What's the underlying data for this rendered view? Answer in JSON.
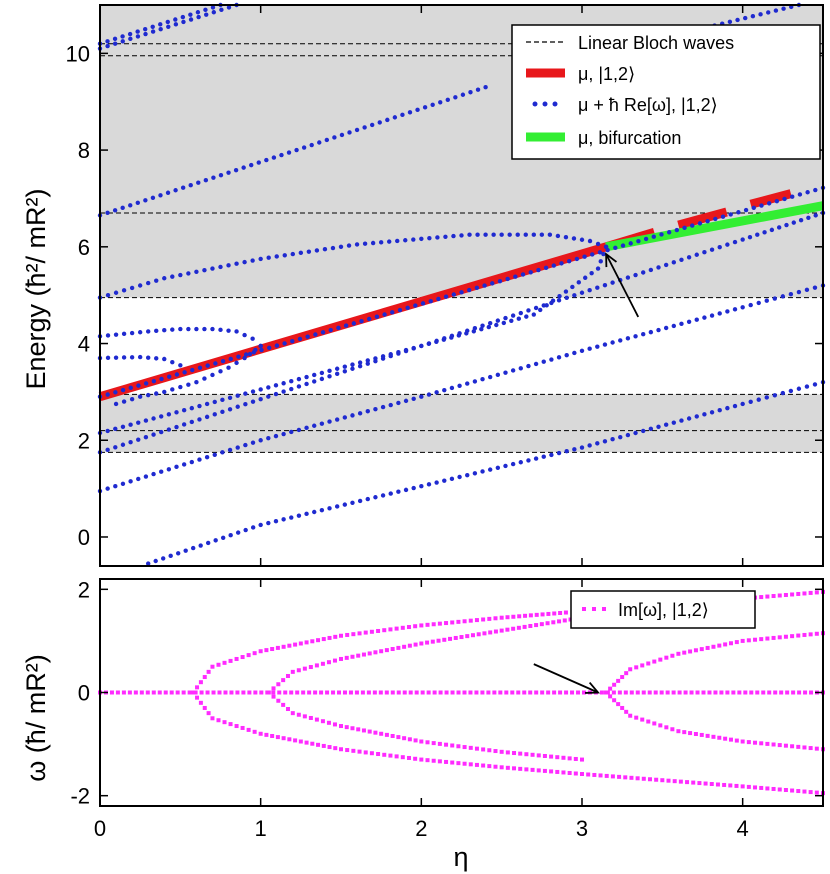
{
  "chart_data": [
    {
      "type": "line",
      "panel": "top",
      "ylabel": "Energy  (ħ²/ mR²)",
      "xlim": [
        0,
        4.5
      ],
      "ylim": [
        -0.6,
        11.0
      ],
      "xticks": [
        0,
        1,
        2,
        3,
        4
      ],
      "yticks": [
        0,
        2,
        4,
        6,
        8,
        10
      ],
      "ytick_labels": [
        "0",
        "2",
        "4",
        "6",
        "8",
        "10"
      ],
      "bands": [
        {
          "from": 1.75,
          "to": 2.95,
          "color": "#d9d9d9"
        },
        {
          "from": 4.95,
          "to": 11.0,
          "color": "#d9d9d9"
        }
      ],
      "linear_bloch_levels": [
        1.75,
        2.2,
        2.95,
        4.95,
        6.7,
        9.95,
        10.2
      ],
      "legend": [
        {
          "label": "Linear Bloch waves",
          "style": "dashed",
          "color": "#000000"
        },
        {
          "label": "μ, |1,2⟩",
          "style": "thick",
          "color": "#e8171b"
        },
        {
          "label": "μ + ħ Re[ω], |1,2⟩",
          "style": "dot",
          "color": "#1f2ad0"
        },
        {
          "label": "μ, bifurcation",
          "style": "thick",
          "color": "#33ee33"
        }
      ],
      "series": [
        {
          "name": "μ, |1,2⟩",
          "color": "#e8171b",
          "kind": "thick",
          "x": [
            0,
            3.15
          ],
          "y": [
            2.9,
            6.0
          ]
        },
        {
          "name": "μ, |1,2⟩ (segment)",
          "color": "#e8171b",
          "kind": "thick",
          "x": [
            3.15,
            3.45
          ],
          "y": [
            6.0,
            6.3
          ]
        },
        {
          "name": "μ, |1,2⟩ (segment)",
          "color": "#e8171b",
          "kind": "thick",
          "x": [
            3.6,
            3.9
          ],
          "y": [
            6.45,
            6.72
          ]
        },
        {
          "name": "μ, |1,2⟩ (segment)",
          "color": "#e8171b",
          "kind": "thick",
          "x": [
            4.05,
            4.3
          ],
          "y": [
            6.88,
            7.1
          ]
        },
        {
          "name": "μ, bifurcation",
          "color": "#33ee33",
          "kind": "thick",
          "x": [
            3.15,
            4.5
          ],
          "y": [
            6.0,
            6.85
          ]
        },
        {
          "name": "μ + ħ Re[ω], |1,2⟩",
          "color": "#1f2ad0",
          "kind": "dots",
          "x": [
            0,
            4.5
          ],
          "y": [
            2.9,
            7.22
          ]
        },
        {
          "name": "μ + ħ Re[ω], |1,2⟩",
          "color": "#1f2ad0",
          "kind": "dots",
          "x": [
            0,
            0.85
          ],
          "y": [
            10.1,
            11.0
          ]
        },
        {
          "name": "μ + ħ Re[ω], |1,2⟩",
          "color": "#1f2ad0",
          "kind": "dots",
          "x": [
            0,
            0.75
          ],
          "y": [
            10.2,
            11.0
          ]
        },
        {
          "name": "μ + ħ Re[ω], |1,2⟩",
          "color": "#1f2ad0",
          "kind": "dots",
          "x": [
            0,
            2.4
          ],
          "y": [
            6.65,
            9.3
          ]
        },
        {
          "name": "μ + ħ Re[ω], |1,2⟩",
          "color": "#1f2ad0",
          "kind": "dots",
          "x": [
            3.3,
            4.35
          ],
          "y": [
            10.15,
            11.0
          ]
        },
        {
          "name": "μ + ħ Re[ω], |1,2⟩",
          "color": "#1f2ad0",
          "kind": "dots",
          "x": [
            0,
            0.4,
            1.0,
            1.6,
            2.3,
            2.8,
            3.05,
            3.15
          ],
          "y": [
            4.95,
            5.35,
            5.75,
            6.05,
            6.25,
            6.25,
            6.12,
            6.0
          ]
        },
        {
          "name": "μ + ħ Re[ω], |1,2⟩",
          "color": "#1f2ad0",
          "kind": "dots",
          "x": [
            0,
            1.0,
            2.0,
            2.7,
            3.1,
            3.15
          ],
          "y": [
            2.15,
            3.05,
            3.95,
            4.6,
            5.55,
            6.0
          ]
        },
        {
          "name": "μ + ħ Re[ω], |1,2⟩",
          "color": "#1f2ad0",
          "kind": "dots",
          "x": [
            0,
            1.0,
            2.0,
            3.0,
            4.0,
            4.5
          ],
          "y": [
            1.75,
            2.85,
            3.95,
            5.05,
            6.15,
            6.7
          ]
        },
        {
          "name": "μ + ħ Re[ω], |1,2⟩",
          "color": "#1f2ad0",
          "kind": "dots",
          "x": [
            0,
            0.3,
            0.5,
            0.7,
            0.85,
            0.95,
            1.0
          ],
          "y": [
            4.15,
            4.25,
            4.3,
            4.3,
            4.25,
            4.1,
            3.95
          ]
        },
        {
          "name": "μ + ħ Re[ω], |1,2⟩",
          "color": "#1f2ad0",
          "kind": "dots",
          "x": [
            0,
            0.25,
            0.4,
            0.5
          ],
          "y": [
            3.7,
            3.72,
            3.68,
            3.55
          ]
        },
        {
          "name": "μ + ħ Re[ω], |1,2⟩",
          "color": "#1f2ad0",
          "kind": "dots",
          "x": [
            1.0,
            0.9,
            0.8,
            0.7,
            0.6,
            0.5,
            0.4,
            0.25,
            0.1
          ],
          "y": [
            3.95,
            3.7,
            3.5,
            3.35,
            3.2,
            3.1,
            3.0,
            2.9,
            2.75
          ]
        },
        {
          "name": "μ + ħ Re[ω], |1,2⟩",
          "color": "#1f2ad0",
          "kind": "dots",
          "x": [
            0,
            1.0,
            2.0,
            3.0,
            4.0,
            4.5
          ],
          "y": [
            0.95,
            2.0,
            2.9,
            3.85,
            4.75,
            5.2
          ]
        },
        {
          "name": "μ + ħ Re[ω], |1,2⟩",
          "color": "#1f2ad0",
          "kind": "dots",
          "x": [
            0.3,
            1.0,
            2.0,
            3.0,
            4.0,
            4.5
          ],
          "y": [
            -0.55,
            0.25,
            1.05,
            1.85,
            2.75,
            3.2
          ]
        }
      ],
      "annotation": {
        "type": "arrow",
        "from": [
          3.35,
          4.55
        ],
        "to": [
          3.15,
          5.85
        ]
      }
    },
    {
      "type": "scatter",
      "panel": "bottom",
      "xlabel": "η",
      "ylabel": "ω (ħ/ mR²)",
      "xlim": [
        0,
        4.5
      ],
      "ylim": [
        -2.2,
        2.2
      ],
      "xticks": [
        0,
        1,
        2,
        3,
        4
      ],
      "xtick_labels": [
        "0",
        "1",
        "2",
        "3",
        "4"
      ],
      "yticks": [
        -2,
        0,
        2
      ],
      "ytick_labels": [
        "-2",
        "0",
        "2"
      ],
      "legend": [
        {
          "label": "Im[ω], |1,2⟩",
          "style": "square",
          "color": "#ff2bff"
        }
      ],
      "series": [
        {
          "name": "Im[ω], |1,2⟩",
          "color": "#ff2bff",
          "kind": "squares",
          "x": [
            0,
            4.5
          ],
          "y": [
            0,
            0
          ]
        },
        {
          "name": "Im[ω], |1,2⟩",
          "color": "#ff2bff",
          "kind": "squares",
          "x": [
            0.58,
            0.7,
            1.0,
            1.5,
            2.0,
            2.5,
            2.9
          ],
          "y": [
            0,
            0.5,
            0.8,
            1.1,
            1.3,
            1.45,
            1.55
          ]
        },
        {
          "name": "Im[ω], |1,2⟩",
          "color": "#ff2bff",
          "kind": "squares",
          "x": [
            0.58,
            0.7,
            1.0,
            1.5,
            2.0,
            2.5,
            3.0,
            3.5,
            4.0,
            4.5
          ],
          "y": [
            0,
            -0.5,
            -0.8,
            -1.1,
            -1.3,
            -1.45,
            -1.58,
            -1.7,
            -1.82,
            -1.95
          ]
        },
        {
          "name": "Im[ω], |1,2⟩",
          "color": "#ff2bff",
          "kind": "squares",
          "x": [
            1.05,
            1.2,
            1.5,
            2.0,
            2.5,
            3.0,
            3.3
          ],
          "y": [
            0,
            0.4,
            0.65,
            0.95,
            1.2,
            1.45,
            1.55
          ]
        },
        {
          "name": "Im[ω], |1,2⟩",
          "color": "#ff2bff",
          "kind": "squares",
          "x": [
            1.05,
            1.2,
            1.5,
            2.0,
            2.5,
            3.0
          ],
          "y": [
            0,
            -0.4,
            -0.65,
            -0.95,
            -1.15,
            -1.3
          ]
        },
        {
          "name": "Im[ω], |1,2⟩",
          "color": "#ff2bff",
          "kind": "squares",
          "x": [
            3.15,
            3.3,
            3.6,
            4.0,
            4.5
          ],
          "y": [
            0,
            0.45,
            0.75,
            1.0,
            1.15
          ]
        },
        {
          "name": "Im[ω], |1,2⟩",
          "color": "#ff2bff",
          "kind": "squares",
          "x": [
            3.15,
            3.3,
            3.6,
            4.0,
            4.5
          ],
          "y": [
            0,
            -0.45,
            -0.75,
            -0.95,
            -1.1
          ]
        },
        {
          "name": "Im[ω], |1,2⟩",
          "color": "#ff2bff",
          "kind": "squares",
          "x": [
            3.5,
            4.0,
            4.5
          ],
          "y": [
            1.72,
            1.82,
            1.95
          ]
        }
      ],
      "annotation": {
        "type": "arrow",
        "from": [
          2.7,
          0.55
        ],
        "to": [
          3.1,
          0.0
        ]
      }
    }
  ]
}
